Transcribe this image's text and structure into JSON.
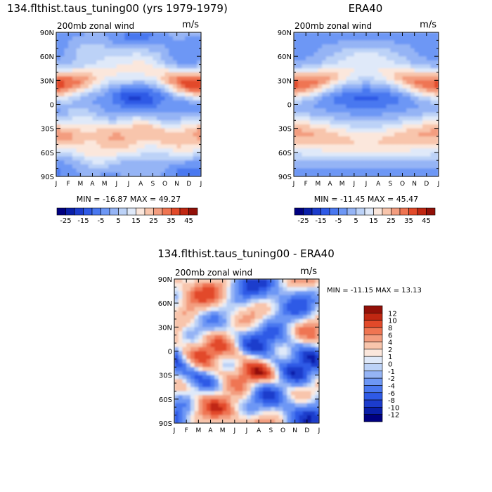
{
  "chart_data": [
    {
      "type": "heatmap",
      "title": "134.flthist.taus_tuning00 (yrs 1979-1979)",
      "subtitle": "200mb zonal wind",
      "units": "m/s",
      "x_ticks": [
        "J",
        "F",
        "M",
        "A",
        "M",
        "J",
        "J",
        "A",
        "S",
        "O",
        "N",
        "D",
        "J"
      ],
      "y_ticks": [
        "90N",
        "60N",
        "30N",
        "0",
        "30S",
        "60S",
        "90S"
      ],
      "ylim": [
        -90,
        90
      ],
      "stats": "MIN = -16.87  MAX =  49.27",
      "colorbar": {
        "levels": [
          -25,
          -20,
          -15,
          -10,
          -5,
          0,
          5,
          10,
          15,
          20,
          25,
          30,
          35,
          40,
          45
        ],
        "labels": [
          "-25",
          "-15",
          "-5",
          "5",
          "15",
          "25",
          "35",
          "45"
        ],
        "colors": [
          "#000080",
          "#0a1fa8",
          "#1c3ccc",
          "#2f5ae6",
          "#4a78f0",
          "#6d97f5",
          "#95b4f5",
          "#bcd2f7",
          "#dfe9f9",
          "#fbe7dc",
          "#f8c5ac",
          "#f39d7f",
          "#ef7552",
          "#e24a2a",
          "#c02712",
          "#921008"
        ]
      },
      "features": {
        "jet_nh_lat": 32,
        "jet_sh_lat": -40,
        "easterly_lat": 8
      }
    },
    {
      "type": "heatmap",
      "title": "ERA40",
      "subtitle": "200mb zonal wind",
      "units": "m/s",
      "x_ticks": [
        "J",
        "F",
        "M",
        "A",
        "M",
        "J",
        "J",
        "A",
        "S",
        "O",
        "N",
        "D",
        "J"
      ],
      "y_ticks": [
        "90N",
        "60N",
        "30N",
        "0",
        "30S",
        "60S",
        "90S"
      ],
      "ylim": [
        -90,
        90
      ],
      "stats": "MIN = -11.45  MAX =  45.47",
      "colorbar": {
        "levels": [
          -25,
          -20,
          -15,
          -10,
          -5,
          0,
          5,
          10,
          15,
          20,
          25,
          30,
          35,
          40,
          45
        ],
        "labels": [
          "-25",
          "-15",
          "-5",
          "5",
          "15",
          "25",
          "35",
          "45"
        ],
        "colors": [
          "#000080",
          "#0a1fa8",
          "#1c3ccc",
          "#2f5ae6",
          "#4a78f0",
          "#6d97f5",
          "#95b4f5",
          "#bcd2f7",
          "#dfe9f9",
          "#fbe7dc",
          "#f8c5ac",
          "#f39d7f",
          "#ef7552",
          "#e24a2a",
          "#c02712",
          "#921008"
        ]
      }
    },
    {
      "type": "heatmap",
      "title": "134.flthist.taus_tuning00 - ERA40",
      "subtitle": "200mb zonal wind",
      "units": "m/s",
      "x_ticks": [
        "J",
        "F",
        "M",
        "A",
        "M",
        "J",
        "J",
        "A",
        "S",
        "O",
        "N",
        "D",
        "J"
      ],
      "y_ticks": [
        "90N",
        "60N",
        "30N",
        "0",
        "30S",
        "60S",
        "90S"
      ],
      "ylim": [
        -90,
        90
      ],
      "stats": "MIN = -11.15  MAX =  13.13",
      "colorbar": {
        "levels": [
          -12,
          -10,
          -8,
          -6,
          -4,
          -2,
          -1,
          0,
          1,
          2,
          4,
          6,
          8,
          10,
          12
        ],
        "labels": [
          "12",
          "10",
          "8",
          "6",
          "4",
          "2",
          "1",
          "0",
          "-1",
          "-2",
          "-4",
          "-6",
          "-8",
          "-10",
          "-12"
        ],
        "colors": [
          "#000080",
          "#0a1fa8",
          "#1c3ccc",
          "#2f5ae6",
          "#4a78f0",
          "#6d97f5",
          "#95b4f5",
          "#bcd2f7",
          "#dfe9f9",
          "#fbe7dc",
          "#f8c5ac",
          "#f39d7f",
          "#ef7552",
          "#e24a2a",
          "#c02712",
          "#921008"
        ]
      }
    }
  ]
}
